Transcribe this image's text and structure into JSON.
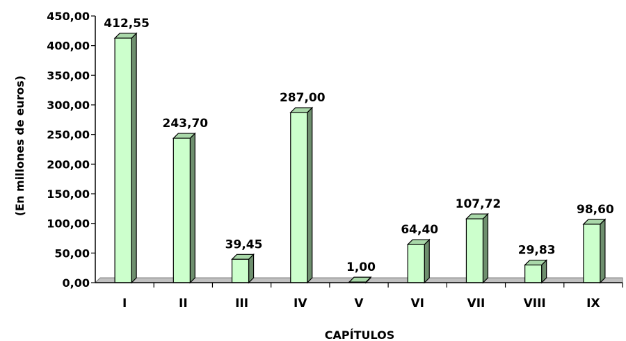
{
  "chart_data": {
    "type": "bar",
    "categories": [
      "I",
      "II",
      "III",
      "IV",
      "V",
      "VI",
      "VII",
      "VIII",
      "IX"
    ],
    "values": [
      412.55,
      243.7,
      39.45,
      287.0,
      1.0,
      64.4,
      107.72,
      29.83,
      98.6
    ],
    "value_labels": [
      "412,55",
      "243,70",
      "39,45",
      "287,00",
      "1,00",
      "64,40",
      "107,72",
      "29,83",
      "98,60"
    ],
    "xlabel": "CAPÍTULOS",
    "ylabel": "(En millones de euros)",
    "ylim": [
      0,
      450
    ],
    "yticks": [
      0,
      50,
      100,
      150,
      200,
      250,
      300,
      350,
      400,
      450
    ],
    "ytick_labels": [
      "0,00",
      "50,00",
      "100,00",
      "150,00",
      "200,00",
      "250,00",
      "300,00",
      "350,00",
      "400,00",
      "450,00"
    ],
    "grid": false,
    "legend": "none",
    "bar_style": "3d",
    "colors": {
      "bar_front": "#ccffcc",
      "bar_top": "#a9d8a9",
      "bar_side": "#6e8f6e",
      "floor": "#c0c0c0",
      "outline": "#000000"
    }
  }
}
